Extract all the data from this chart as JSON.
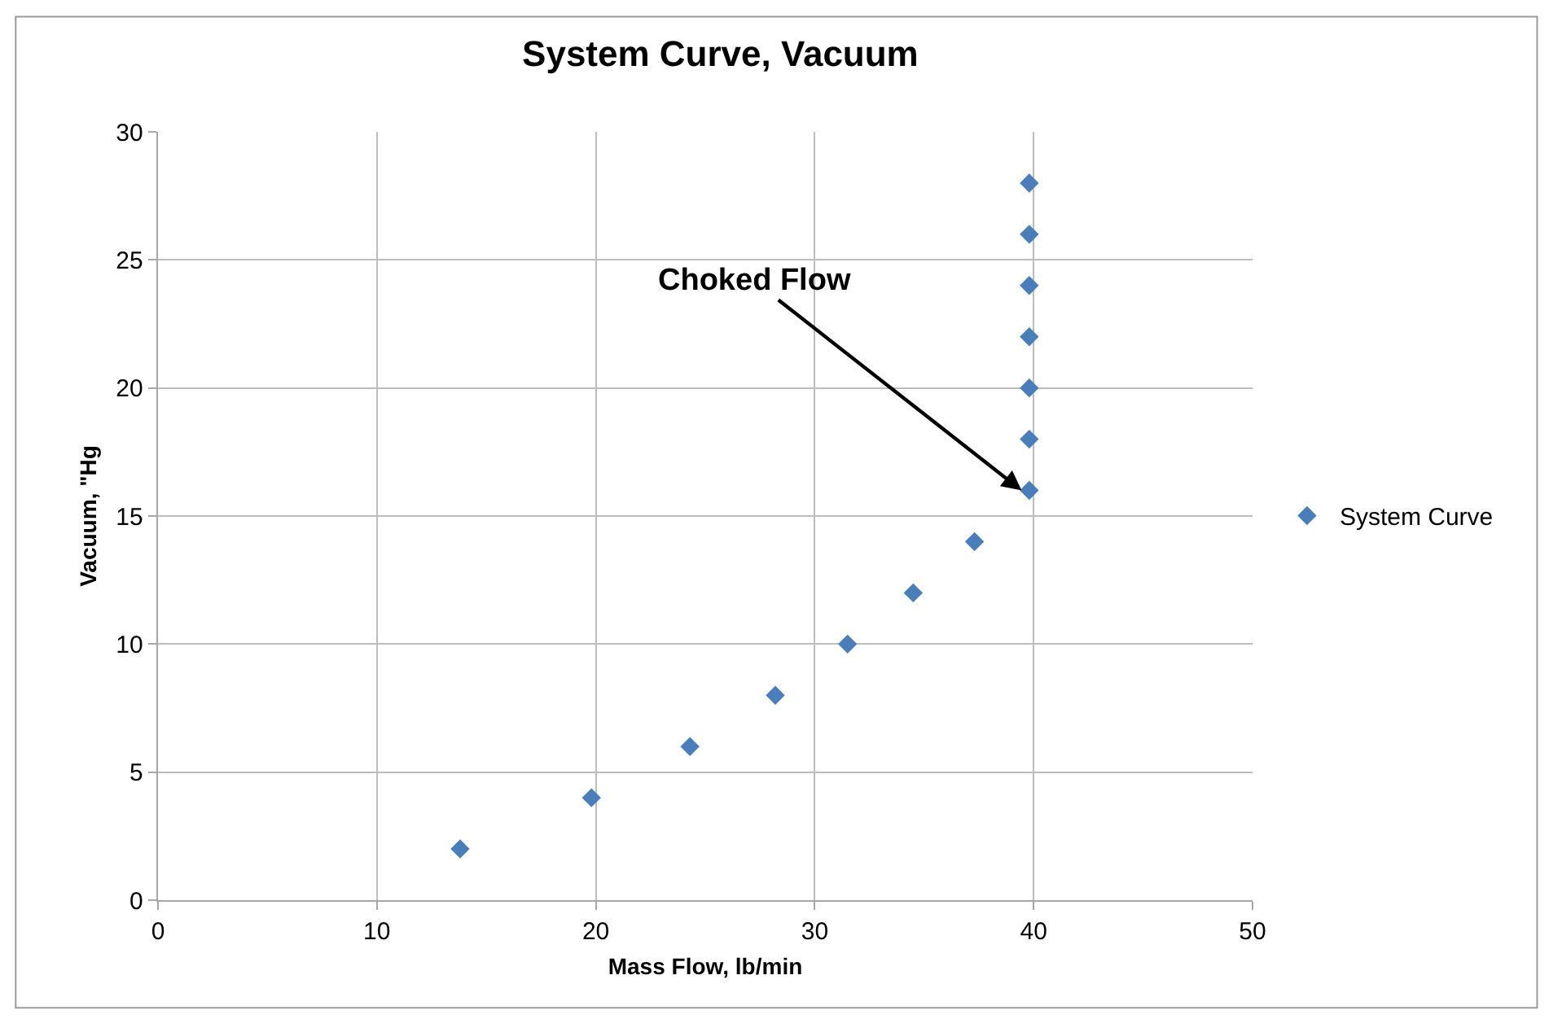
{
  "chart_data": {
    "type": "scatter",
    "title": "System Curve, Vacuum",
    "xlabel": "Mass Flow, lb/min",
    "ylabel": "Vacuum, \"Hg",
    "x": [
      13.8,
      19.8,
      24.3,
      28.2,
      31.5,
      34.5,
      37.3,
      39.8,
      39.8,
      39.8,
      39.8,
      39.8,
      39.8,
      39.8
    ],
    "series": [
      {
        "name": "System Curve",
        "color": "#4a7ebb",
        "values": [
          2,
          4,
          6,
          8,
          10,
          12,
          14,
          16,
          18,
          20,
          22,
          24,
          26,
          28
        ]
      }
    ],
    "xlim": [
      0,
      50
    ],
    "xticks": [
      0,
      10,
      20,
      30,
      40,
      50
    ],
    "ylim": [
      0,
      30
    ],
    "yticks": [
      0,
      5,
      10,
      15,
      20,
      25,
      30
    ],
    "grid": true,
    "legend": "right",
    "marker": "diamond",
    "annotations": [
      {
        "text": "Choked Flow",
        "x": 39.8,
        "y": 16
      }
    ]
  }
}
